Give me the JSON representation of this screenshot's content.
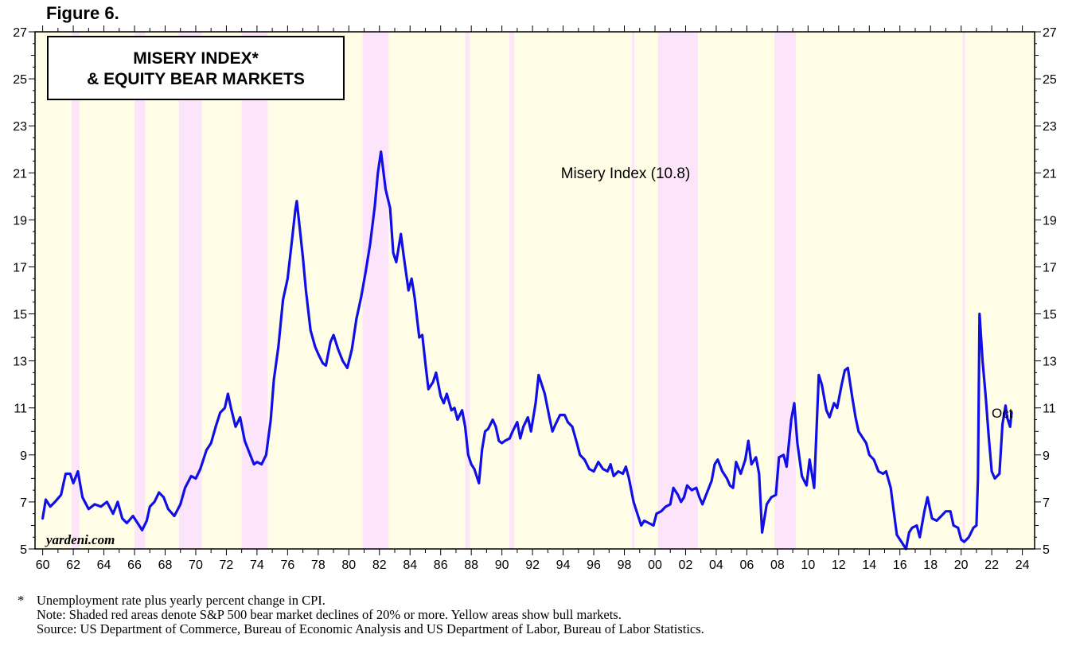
{
  "figure_label": "Figure 6.",
  "chart_data": {
    "type": "line",
    "title_line1": "MISERY INDEX*",
    "title_line2": "& EQUITY BEAR MARKETS",
    "series": [
      {
        "name": "Misery Index (10.8)",
        "color": "#1010e6",
        "points": [
          [
            1960.0,
            6.3
          ],
          [
            1960.2,
            7.1
          ],
          [
            1960.5,
            6.8
          ],
          [
            1960.8,
            7.0
          ],
          [
            1961.2,
            7.3
          ],
          [
            1961.5,
            8.2
          ],
          [
            1961.8,
            8.2
          ],
          [
            1962.0,
            7.8
          ],
          [
            1962.3,
            8.3
          ],
          [
            1962.6,
            7.2
          ],
          [
            1963.0,
            6.7
          ],
          [
            1963.4,
            6.9
          ],
          [
            1963.8,
            6.8
          ],
          [
            1964.2,
            7.0
          ],
          [
            1964.6,
            6.5
          ],
          [
            1964.9,
            7.0
          ],
          [
            1965.2,
            6.3
          ],
          [
            1965.5,
            6.1
          ],
          [
            1965.9,
            6.4
          ],
          [
            1966.2,
            6.1
          ],
          [
            1966.5,
            5.8
          ],
          [
            1966.8,
            6.2
          ],
          [
            1967.0,
            6.8
          ],
          [
            1967.3,
            7.0
          ],
          [
            1967.6,
            7.4
          ],
          [
            1967.9,
            7.2
          ],
          [
            1968.2,
            6.7
          ],
          [
            1968.6,
            6.4
          ],
          [
            1969.0,
            6.9
          ],
          [
            1969.3,
            7.6
          ],
          [
            1969.7,
            8.1
          ],
          [
            1970.0,
            8.0
          ],
          [
            1970.3,
            8.4
          ],
          [
            1970.7,
            9.2
          ],
          [
            1971.0,
            9.5
          ],
          [
            1971.3,
            10.2
          ],
          [
            1971.6,
            10.8
          ],
          [
            1971.9,
            11.0
          ],
          [
            1972.1,
            11.6
          ],
          [
            1972.3,
            11.0
          ],
          [
            1972.6,
            10.2
          ],
          [
            1972.9,
            10.6
          ],
          [
            1973.2,
            9.6
          ],
          [
            1973.5,
            9.1
          ],
          [
            1973.8,
            8.6
          ],
          [
            1974.0,
            8.7
          ],
          [
            1974.3,
            8.6
          ],
          [
            1974.6,
            9.0
          ],
          [
            1974.9,
            10.5
          ],
          [
            1975.1,
            12.2
          ],
          [
            1975.4,
            13.6
          ],
          [
            1975.7,
            15.6
          ],
          [
            1976.0,
            16.5
          ],
          [
            1976.3,
            18.2
          ],
          [
            1976.5,
            19.4
          ],
          [
            1976.6,
            19.8
          ],
          [
            1976.8,
            18.6
          ],
          [
            1977.0,
            17.4
          ],
          [
            1977.2,
            16.0
          ],
          [
            1977.5,
            14.3
          ],
          [
            1977.8,
            13.6
          ],
          [
            1978.0,
            13.3
          ],
          [
            1978.3,
            12.9
          ],
          [
            1978.5,
            12.8
          ],
          [
            1978.8,
            13.8
          ],
          [
            1979.0,
            14.1
          ],
          [
            1979.3,
            13.5
          ],
          [
            1979.6,
            13.0
          ],
          [
            1979.9,
            12.7
          ],
          [
            1980.2,
            13.5
          ],
          [
            1980.5,
            14.8
          ],
          [
            1980.8,
            15.7
          ],
          [
            1981.1,
            16.8
          ],
          [
            1981.4,
            18.0
          ],
          [
            1981.7,
            19.6
          ],
          [
            1981.9,
            21.0
          ],
          [
            1982.1,
            21.9
          ],
          [
            1982.4,
            20.3
          ],
          [
            1982.7,
            19.5
          ],
          [
            1982.9,
            17.6
          ],
          [
            1983.1,
            17.2
          ],
          [
            1983.4,
            18.4
          ],
          [
            1983.6,
            17.4
          ],
          [
            1983.9,
            16.0
          ],
          [
            1984.1,
            16.5
          ],
          [
            1984.3,
            15.7
          ],
          [
            1984.6,
            14.0
          ],
          [
            1984.8,
            14.1
          ],
          [
            1985.0,
            12.9
          ],
          [
            1985.2,
            11.8
          ],
          [
            1985.5,
            12.1
          ],
          [
            1985.7,
            12.5
          ],
          [
            1986.0,
            11.5
          ],
          [
            1986.2,
            11.2
          ],
          [
            1986.4,
            11.6
          ],
          [
            1986.7,
            10.9
          ],
          [
            1986.9,
            11.0
          ],
          [
            1987.1,
            10.5
          ],
          [
            1987.4,
            10.9
          ],
          [
            1987.6,
            10.2
          ],
          [
            1987.8,
            9.0
          ],
          [
            1988.0,
            8.6
          ],
          [
            1988.2,
            8.4
          ],
          [
            1988.5,
            7.8
          ],
          [
            1988.7,
            9.2
          ],
          [
            1988.9,
            10.0
          ],
          [
            1989.1,
            10.1
          ],
          [
            1989.4,
            10.5
          ],
          [
            1989.6,
            10.2
          ],
          [
            1989.8,
            9.6
          ],
          [
            1990.0,
            9.5
          ],
          [
            1990.2,
            9.6
          ],
          [
            1990.5,
            9.7
          ],
          [
            1990.7,
            10.0
          ],
          [
            1991.0,
            10.4
          ],
          [
            1991.2,
            9.7
          ],
          [
            1991.4,
            10.2
          ],
          [
            1991.7,
            10.6
          ],
          [
            1991.9,
            10.0
          ],
          [
            1992.2,
            11.2
          ],
          [
            1992.4,
            12.4
          ],
          [
            1992.6,
            12.0
          ],
          [
            1992.8,
            11.6
          ],
          [
            1993.1,
            10.6
          ],
          [
            1993.3,
            10.0
          ],
          [
            1993.5,
            10.3
          ],
          [
            1993.8,
            10.7
          ],
          [
            1994.1,
            10.7
          ],
          [
            1994.3,
            10.4
          ],
          [
            1994.6,
            10.2
          ],
          [
            1994.9,
            9.5
          ],
          [
            1995.1,
            9.0
          ],
          [
            1995.4,
            8.8
          ],
          [
            1995.7,
            8.4
          ],
          [
            1996.0,
            8.3
          ],
          [
            1996.3,
            8.7
          ],
          [
            1996.6,
            8.4
          ],
          [
            1996.9,
            8.3
          ],
          [
            1997.1,
            8.6
          ],
          [
            1997.3,
            8.1
          ],
          [
            1997.6,
            8.3
          ],
          [
            1997.9,
            8.2
          ],
          [
            1998.1,
            8.5
          ],
          [
            1998.3,
            8.0
          ],
          [
            1998.6,
            7.0
          ],
          [
            1998.9,
            6.4
          ],
          [
            1999.1,
            6.0
          ],
          [
            1999.3,
            6.2
          ],
          [
            1999.6,
            6.1
          ],
          [
            1999.9,
            6.0
          ],
          [
            2000.1,
            6.5
          ],
          [
            2000.4,
            6.6
          ],
          [
            2000.7,
            6.8
          ],
          [
            2001.0,
            6.9
          ],
          [
            2001.2,
            7.6
          ],
          [
            2001.5,
            7.3
          ],
          [
            2001.7,
            7.0
          ],
          [
            2001.9,
            7.2
          ],
          [
            2002.1,
            7.7
          ],
          [
            2002.4,
            7.5
          ],
          [
            2002.7,
            7.6
          ],
          [
            2002.9,
            7.2
          ],
          [
            2003.1,
            6.9
          ],
          [
            2003.4,
            7.4
          ],
          [
            2003.7,
            7.9
          ],
          [
            2003.9,
            8.6
          ],
          [
            2004.1,
            8.8
          ],
          [
            2004.4,
            8.3
          ],
          [
            2004.7,
            8.0
          ],
          [
            2004.9,
            7.7
          ],
          [
            2005.1,
            7.6
          ],
          [
            2005.3,
            8.7
          ],
          [
            2005.6,
            8.2
          ],
          [
            2005.9,
            8.8
          ],
          [
            2006.1,
            9.6
          ],
          [
            2006.3,
            8.6
          ],
          [
            2006.6,
            8.9
          ],
          [
            2006.8,
            8.2
          ],
          [
            2007.0,
            5.7
          ],
          [
            2007.3,
            6.9
          ],
          [
            2007.6,
            7.2
          ],
          [
            2007.9,
            7.3
          ],
          [
            2008.1,
            8.9
          ],
          [
            2008.4,
            9.0
          ],
          [
            2008.6,
            8.5
          ],
          [
            2008.9,
            10.5
          ],
          [
            2009.1,
            11.2
          ],
          [
            2009.3,
            9.5
          ],
          [
            2009.6,
            8.1
          ],
          [
            2009.9,
            7.7
          ],
          [
            2010.1,
            8.8
          ],
          [
            2010.4,
            7.6
          ],
          [
            2010.7,
            12.4
          ],
          [
            2010.9,
            12.0
          ],
          [
            2011.2,
            10.9
          ],
          [
            2011.4,
            10.6
          ],
          [
            2011.7,
            11.2
          ],
          [
            2011.9,
            11.0
          ],
          [
            2012.2,
            12.0
          ],
          [
            2012.4,
            12.6
          ],
          [
            2012.6,
            12.7
          ],
          [
            2012.9,
            11.4
          ],
          [
            2013.1,
            10.6
          ],
          [
            2013.3,
            10.0
          ],
          [
            2013.6,
            9.7
          ],
          [
            2013.8,
            9.5
          ],
          [
            2014.0,
            9.0
          ],
          [
            2014.3,
            8.8
          ],
          [
            2014.6,
            8.3
          ],
          [
            2014.9,
            8.2
          ],
          [
            2015.1,
            8.3
          ],
          [
            2015.4,
            7.6
          ],
          [
            2015.6,
            6.6
          ],
          [
            2015.8,
            5.6
          ],
          [
            2016.1,
            5.3
          ],
          [
            2016.4,
            5.0
          ],
          [
            2016.6,
            5.7
          ],
          [
            2016.8,
            5.9
          ],
          [
            2017.1,
            6.0
          ],
          [
            2017.3,
            5.5
          ],
          [
            2017.6,
            6.6
          ],
          [
            2017.8,
            7.2
          ],
          [
            2018.1,
            6.3
          ],
          [
            2018.4,
            6.2
          ],
          [
            2018.7,
            6.4
          ],
          [
            2019.0,
            6.6
          ],
          [
            2019.3,
            6.6
          ],
          [
            2019.5,
            6.0
          ],
          [
            2019.8,
            5.9
          ],
          [
            2020.0,
            5.4
          ],
          [
            2020.2,
            5.3
          ],
          [
            2020.5,
            5.5
          ],
          [
            2020.8,
            5.9
          ],
          [
            2021.0,
            6.0
          ],
          [
            2021.1,
            8.0
          ],
          [
            2021.2,
            15.0
          ],
          [
            2021.4,
            13.0
          ],
          [
            2021.6,
            11.5
          ],
          [
            2021.8,
            9.8
          ],
          [
            2022.0,
            8.3
          ],
          [
            2022.2,
            8.0
          ],
          [
            2022.5,
            8.2
          ],
          [
            2022.7,
            10.3
          ],
          [
            2022.9,
            11.1
          ],
          [
            2023.0,
            10.6
          ],
          [
            2023.2,
            10.2
          ],
          [
            2023.3,
            10.8
          ]
        ]
      }
    ],
    "bear_markets": [
      [
        1961.9,
        1962.4
      ],
      [
        1966.0,
        1966.7
      ],
      [
        1968.9,
        1970.4
      ],
      [
        1973.0,
        1974.7
      ],
      [
        1980.9,
        1982.6
      ],
      [
        1987.6,
        1987.9
      ],
      [
        1990.5,
        1990.8
      ],
      [
        1998.5,
        1998.6
      ],
      [
        2000.2,
        2002.8
      ],
      [
        2007.8,
        2009.2
      ],
      [
        2020.1,
        2020.2
      ]
    ],
    "bull_color": "#fffde6",
    "bear_color": "#fce4fa",
    "xlim": [
      1959.5,
      2024.8
    ],
    "ylim": [
      5,
      27
    ],
    "yticks": [
      5,
      7,
      9,
      11,
      13,
      15,
      17,
      19,
      21,
      23,
      25,
      27
    ],
    "xtick_labels": [
      "60",
      "62",
      "64",
      "66",
      "68",
      "70",
      "72",
      "74",
      "76",
      "78",
      "80",
      "82",
      "84",
      "86",
      "88",
      "90",
      "92",
      "94",
      "96",
      "98",
      "00",
      "02",
      "04",
      "06",
      "08",
      "10",
      "12",
      "14",
      "16",
      "18",
      "20",
      "22",
      "24"
    ],
    "series_label": "Misery Index (10.8)",
    "end_label": "Oct",
    "watermark": "yardeni.com"
  },
  "footnotes": {
    "star_note": "Unemployment rate plus yearly percent change in CPI.",
    "note": "Note: Shaded red areas denote S&P 500 bear market declines of 20% or more. Yellow areas show bull markets.",
    "source": "Source: US Department of Commerce, Bureau of Economic Analysis and US Department of Labor, Bureau of Labor Statistics."
  }
}
